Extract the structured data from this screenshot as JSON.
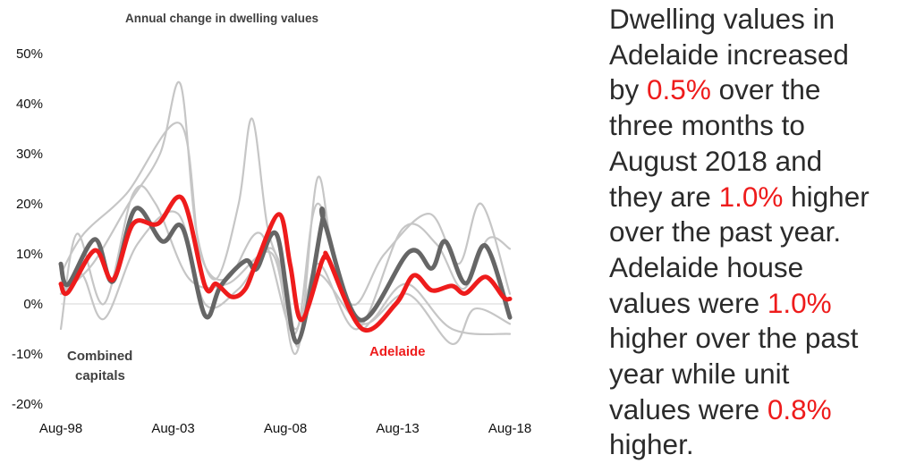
{
  "chart_data": {
    "type": "line",
    "title": "Annual change in dwelling values",
    "xlabel": "",
    "ylabel": "",
    "x_ticks": [
      {
        "x": 1998.58,
        "label": "Aug-98"
      },
      {
        "x": 2003.58,
        "label": "Aug-03"
      },
      {
        "x": 2008.58,
        "label": "Aug-08"
      },
      {
        "x": 2013.58,
        "label": "Aug-13"
      },
      {
        "x": 2018.58,
        "label": "Aug-18"
      }
    ],
    "y_ticks": [
      {
        "y": 50,
        "label": "50%"
      },
      {
        "y": 40,
        "label": "40%"
      },
      {
        "y": 30,
        "label": "30%"
      },
      {
        "y": 20,
        "label": "20%"
      },
      {
        "y": 10,
        "label": "10%"
      },
      {
        "y": 0,
        "label": "0%"
      },
      {
        "y": -10,
        "label": "-10%"
      },
      {
        "y": -20,
        "label": "-20%"
      }
    ],
    "xlim": [
      1998.58,
      2018.58
    ],
    "ylim": [
      -20,
      50
    ],
    "grid": false,
    "zero_line": true,
    "legend": "none (direct labels)",
    "series": [
      {
        "color": "#c6c6c6",
        "role": "other",
        "points": [
          [
            1998.58,
            2
          ],
          [
            2000,
            8
          ],
          [
            2001.6,
            20
          ],
          [
            2003,
            30
          ],
          [
            2003.9,
            44
          ],
          [
            2004.6,
            15
          ],
          [
            2005.5,
            5
          ],
          [
            2006.5,
            20
          ],
          [
            2007.1,
            37
          ],
          [
            2007.8,
            15
          ],
          [
            2008.6,
            5
          ],
          [
            2009.2,
            -8
          ],
          [
            2010,
            25
          ],
          [
            2010.7,
            10
          ],
          [
            2011.8,
            -4
          ],
          [
            2012.5,
            -3
          ],
          [
            2014,
            4
          ],
          [
            2016,
            -5
          ],
          [
            2018.58,
            -6
          ]
        ]
      },
      {
        "color": "#c6c6c6",
        "role": "other",
        "points": [
          [
            1998.58,
            6
          ],
          [
            1999.6,
            14
          ],
          [
            2001.5,
            22
          ],
          [
            2003.9,
            36
          ],
          [
            2004.8,
            10
          ],
          [
            2006,
            5
          ],
          [
            2007.5,
            14
          ],
          [
            2009,
            -6
          ],
          [
            2010,
            20
          ],
          [
            2011.5,
            0
          ],
          [
            2013,
            10
          ],
          [
            2015,
            18
          ],
          [
            2016.3,
            8
          ],
          [
            2017.3,
            20
          ],
          [
            2018.58,
            2
          ]
        ]
      },
      {
        "color": "#c6c6c6",
        "role": "other",
        "points": [
          [
            1998.58,
            -5
          ],
          [
            1999.3,
            14
          ],
          [
            2000.5,
            0
          ],
          [
            2001.8,
            22
          ],
          [
            2002.8,
            20
          ],
          [
            2004.3,
            5
          ],
          [
            2006,
            4
          ],
          [
            2008,
            10
          ],
          [
            2009,
            -10
          ],
          [
            2010,
            8
          ],
          [
            2011.8,
            -5
          ],
          [
            2013.8,
            15
          ],
          [
            2015.3,
            12
          ],
          [
            2016.5,
            3
          ],
          [
            2017.6,
            13
          ],
          [
            2018.58,
            11
          ]
        ]
      },
      {
        "color": "#c6c6c6",
        "role": "other",
        "points": [
          [
            1998.58,
            2
          ],
          [
            1999.5,
            6
          ],
          [
            2000.5,
            -3
          ],
          [
            2002,
            12
          ],
          [
            2003.8,
            18
          ],
          [
            2005,
            0
          ],
          [
            2006.5,
            3
          ],
          [
            2008,
            11
          ],
          [
            2009,
            -5
          ],
          [
            2010,
            6
          ],
          [
            2012,
            -4
          ],
          [
            2014,
            2
          ],
          [
            2016,
            -8
          ],
          [
            2017,
            -1
          ],
          [
            2018.58,
            -4
          ]
        ]
      },
      {
        "name": "Combined capitals",
        "color": "#666666",
        "role": "highlight",
        "points": [
          [
            1998.58,
            8
          ],
          [
            1998.9,
            3.9
          ],
          [
            2000.1,
            12.9
          ],
          [
            2000.9,
            4.5
          ],
          [
            2001.9,
            19
          ],
          [
            2003.1,
            12.5
          ],
          [
            2004,
            15.2
          ],
          [
            2005,
            -2.3
          ],
          [
            2005.7,
            3.6
          ],
          [
            2006.8,
            8.6
          ],
          [
            2007.3,
            7
          ],
          [
            2008.2,
            13.8
          ],
          [
            2009.1,
            -7.7
          ],
          [
            2010.2,
            16
          ],
          [
            2010.3,
            16.6
          ],
          [
            2011.9,
            -3.2
          ],
          [
            2014.1,
            10.4
          ],
          [
            2015.1,
            7.1
          ],
          [
            2015.7,
            12.5
          ],
          [
            2016.6,
            4.1
          ],
          [
            2017.5,
            11.6
          ],
          [
            2018.58,
            -2.7
          ]
        ]
      },
      {
        "name": "Adelaide",
        "color": "#ee1c1c",
        "role": "highlight",
        "points": [
          [
            1998.58,
            4
          ],
          [
            1998.9,
            2.3
          ],
          [
            2000.1,
            10.7
          ],
          [
            2000.9,
            4.8
          ],
          [
            2001.8,
            16
          ],
          [
            2002.9,
            16
          ],
          [
            2004,
            21
          ],
          [
            2005,
            3.6
          ],
          [
            2005.5,
            4
          ],
          [
            2006.2,
            1.4
          ],
          [
            2006.8,
            3
          ],
          [
            2007.3,
            8.4
          ],
          [
            2008.3,
            17.9
          ],
          [
            2008.8,
            7.7
          ],
          [
            2009.3,
            -3.2
          ],
          [
            2010.2,
            8.4
          ],
          [
            2010.4,
            9.3
          ],
          [
            2010.5,
            9
          ],
          [
            2012,
            -5
          ],
          [
            2013.5,
            0
          ],
          [
            2014.3,
            5.7
          ],
          [
            2015.1,
            2.7
          ],
          [
            2016,
            3.6
          ],
          [
            2016.6,
            2.1
          ],
          [
            2017.5,
            5.4
          ],
          [
            2018.3,
            1.3
          ],
          [
            2018.58,
            1.0
          ]
        ]
      }
    ],
    "annotations": [
      {
        "text_lines": [
          "Combined",
          "capitals"
        ],
        "color": "#404040"
      },
      {
        "text_lines": [
          "Adelaide"
        ],
        "color": "#ee1c1c"
      }
    ]
  },
  "commentary": {
    "highlight_color": "#ee1c1c",
    "lines": [
      [
        {
          "t": "Dwelling values in"
        }
      ],
      [
        {
          "t": "Adelaide increased"
        }
      ],
      [
        {
          "t": "by "
        },
        {
          "t": "0.5%",
          "hl": true
        },
        {
          "t": " over the"
        }
      ],
      [
        {
          "t": "three months to"
        }
      ],
      [
        {
          "t": "August 2018 and"
        }
      ],
      [
        {
          "t": "they are "
        },
        {
          "t": "1.0%",
          "hl": true
        },
        {
          "t": " higher"
        }
      ],
      [
        {
          "t": "over the past year."
        }
      ],
      [
        {
          "t": "Adelaide house"
        }
      ],
      [
        {
          "t": "values were "
        },
        {
          "t": "1.0%",
          "hl": true
        }
      ],
      [
        {
          "t": "higher over the past"
        }
      ],
      [
        {
          "t": "year while unit"
        }
      ],
      [
        {
          "t": "values were "
        },
        {
          "t": "0.8%",
          "hl": true
        }
      ],
      [
        {
          "t": "higher."
        }
      ]
    ]
  }
}
